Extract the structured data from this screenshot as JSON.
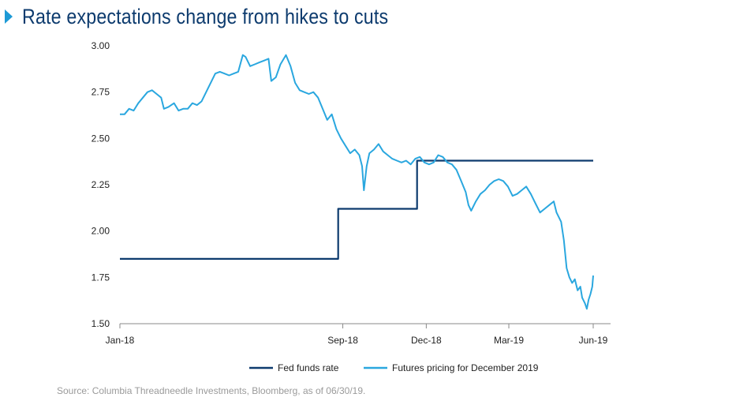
{
  "header": {
    "title": "Rate expectations change from hikes to cuts"
  },
  "footer": {
    "source": "Source: Columbia Threadneedle Investments, Bloomberg, as of 06/30/19."
  },
  "colors": {
    "title": "#0d3b6e",
    "marker": "#1d9ad6",
    "fed_funds": "#0d3b6e",
    "futures": "#2aa7df",
    "axis": "#888888",
    "source": "#9a9a9a"
  },
  "chart_data": {
    "type": "line",
    "title": "",
    "xlabel": "",
    "ylabel": "",
    "ylim": [
      1.5,
      3.0
    ],
    "yticks": [
      "3.00",
      "2.75",
      "2.50",
      "2.25",
      "2.00",
      "1.75",
      "1.50"
    ],
    "ytick_values": [
      3.0,
      2.75,
      2.5,
      2.25,
      2.0,
      1.75,
      1.5
    ],
    "xticks": [
      "Jan-18",
      "Sep-18",
      "Dec-18",
      "Mar-19",
      "Jun-19"
    ],
    "xtick_dates": [
      "2018-01-01",
      "2018-09-01",
      "2018-12-01",
      "2019-03-01",
      "2019-06-01"
    ],
    "xlim": [
      "2018-01-01",
      "2019-06-01"
    ],
    "grid": false,
    "legend": "bottom",
    "series": [
      {
        "name": "Fed funds rate",
        "step": true,
        "points": [
          [
            "2018-01-01",
            1.85
          ],
          [
            "2018-08-27",
            1.85
          ],
          [
            "2018-08-27",
            2.12
          ],
          [
            "2018-11-21",
            2.12
          ],
          [
            "2018-11-21",
            2.38
          ],
          [
            "2019-06-01",
            2.38
          ]
        ]
      },
      {
        "name": "Futures pricing for December 2019",
        "step": false,
        "points": [
          [
            "2018-01-01",
            2.63
          ],
          [
            "2018-01-06",
            2.63
          ],
          [
            "2018-01-11",
            2.66
          ],
          [
            "2018-01-16",
            2.65
          ],
          [
            "2018-01-21",
            2.69
          ],
          [
            "2018-01-26",
            2.72
          ],
          [
            "2018-01-31",
            2.75
          ],
          [
            "2018-02-05",
            2.76
          ],
          [
            "2018-02-10",
            2.74
          ],
          [
            "2018-02-15",
            2.72
          ],
          [
            "2018-02-18",
            2.66
          ],
          [
            "2018-02-23",
            2.67
          ],
          [
            "2018-03-01",
            2.69
          ],
          [
            "2018-03-06",
            2.65
          ],
          [
            "2018-03-11",
            2.66
          ],
          [
            "2018-03-16",
            2.66
          ],
          [
            "2018-03-21",
            2.69
          ],
          [
            "2018-03-26",
            2.68
          ],
          [
            "2018-03-31",
            2.7
          ],
          [
            "2018-04-05",
            2.75
          ],
          [
            "2018-04-10",
            2.8
          ],
          [
            "2018-04-15",
            2.85
          ],
          [
            "2018-04-20",
            2.86
          ],
          [
            "2018-04-25",
            2.85
          ],
          [
            "2018-04-30",
            2.84
          ],
          [
            "2018-05-05",
            2.85
          ],
          [
            "2018-05-10",
            2.86
          ],
          [
            "2018-05-15",
            2.95
          ],
          [
            "2018-05-18",
            2.94
          ],
          [
            "2018-05-23",
            2.89
          ],
          [
            "2018-05-28",
            2.9
          ],
          [
            "2018-06-02",
            2.91
          ],
          [
            "2018-06-07",
            2.92
          ],
          [
            "2018-06-12",
            2.93
          ],
          [
            "2018-06-15",
            2.81
          ],
          [
            "2018-06-20",
            2.83
          ],
          [
            "2018-06-25",
            2.9
          ],
          [
            "2018-07-01",
            2.95
          ],
          [
            "2018-07-06",
            2.89
          ],
          [
            "2018-07-11",
            2.8
          ],
          [
            "2018-07-16",
            2.76
          ],
          [
            "2018-07-21",
            2.75
          ],
          [
            "2018-07-26",
            2.74
          ],
          [
            "2018-07-31",
            2.75
          ],
          [
            "2018-08-05",
            2.72
          ],
          [
            "2018-08-10",
            2.66
          ],
          [
            "2018-08-15",
            2.6
          ],
          [
            "2018-08-20",
            2.63
          ],
          [
            "2018-08-25",
            2.55
          ],
          [
            "2018-08-30",
            2.5
          ],
          [
            "2018-09-04",
            2.46
          ],
          [
            "2018-09-09",
            2.42
          ],
          [
            "2018-09-14",
            2.44
          ],
          [
            "2018-09-19",
            2.41
          ],
          [
            "2018-09-22",
            2.35
          ],
          [
            "2018-09-24",
            2.22
          ],
          [
            "2018-09-27",
            2.35
          ],
          [
            "2018-09-30",
            2.42
          ],
          [
            "2018-10-05",
            2.44
          ],
          [
            "2018-10-10",
            2.47
          ],
          [
            "2018-10-15",
            2.43
          ],
          [
            "2018-10-20",
            2.41
          ],
          [
            "2018-10-25",
            2.39
          ],
          [
            "2018-10-30",
            2.38
          ],
          [
            "2018-11-04",
            2.37
          ],
          [
            "2018-11-09",
            2.38
          ],
          [
            "2018-11-14",
            2.36
          ],
          [
            "2018-11-19",
            2.39
          ],
          [
            "2018-11-24",
            2.4
          ],
          [
            "2018-11-29",
            2.37
          ],
          [
            "2018-12-04",
            2.36
          ],
          [
            "2018-12-09",
            2.37
          ],
          [
            "2018-12-14",
            2.41
          ],
          [
            "2018-12-19",
            2.4
          ],
          [
            "2018-12-24",
            2.37
          ],
          [
            "2018-12-29",
            2.36
          ],
          [
            "2019-01-03",
            2.33
          ],
          [
            "2019-01-08",
            2.27
          ],
          [
            "2019-01-13",
            2.21
          ],
          [
            "2019-01-16",
            2.14
          ],
          [
            "2019-01-19",
            2.11
          ],
          [
            "2019-01-24",
            2.16
          ],
          [
            "2019-01-29",
            2.2
          ],
          [
            "2019-02-03",
            2.22
          ],
          [
            "2019-02-08",
            2.25
          ],
          [
            "2019-02-13",
            2.27
          ],
          [
            "2019-02-18",
            2.28
          ],
          [
            "2019-02-23",
            2.27
          ],
          [
            "2019-02-28",
            2.24
          ],
          [
            "2019-03-05",
            2.19
          ],
          [
            "2019-03-10",
            2.2
          ],
          [
            "2019-03-15",
            2.22
          ],
          [
            "2019-03-20",
            2.24
          ],
          [
            "2019-03-25",
            2.2
          ],
          [
            "2019-03-30",
            2.15
          ],
          [
            "2019-04-04",
            2.1
          ],
          [
            "2019-04-09",
            2.12
          ],
          [
            "2019-04-14",
            2.14
          ],
          [
            "2019-04-19",
            2.16
          ],
          [
            "2019-04-22",
            2.1
          ],
          [
            "2019-04-27",
            2.05
          ],
          [
            "2019-04-30",
            1.95
          ],
          [
            "2019-05-03",
            1.8
          ],
          [
            "2019-05-06",
            1.75
          ],
          [
            "2019-05-09",
            1.72
          ],
          [
            "2019-05-12",
            1.74
          ],
          [
            "2019-05-15",
            1.68
          ],
          [
            "2019-05-18",
            1.7
          ],
          [
            "2019-05-20",
            1.64
          ],
          [
            "2019-05-23",
            1.61
          ],
          [
            "2019-05-25",
            1.58
          ],
          [
            "2019-05-27",
            1.63
          ],
          [
            "2019-05-29",
            1.66
          ],
          [
            "2019-05-31",
            1.7
          ],
          [
            "2019-06-01",
            1.76
          ]
        ]
      }
    ]
  }
}
